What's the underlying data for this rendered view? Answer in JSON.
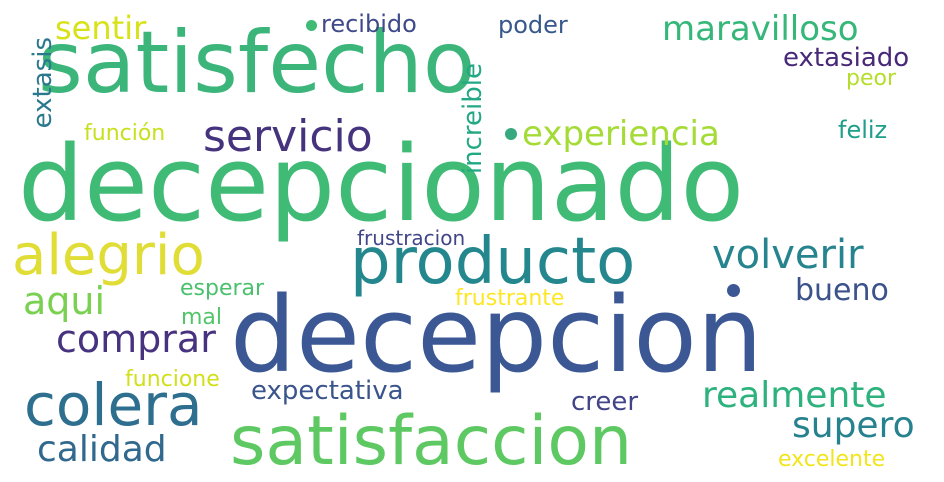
{
  "words": [
    {
      "text": "satisfecho",
      "color": "#3bb57a"
    },
    {
      "text": "decepcionado",
      "color": "#3fbb75"
    },
    {
      "text": "decepcion",
      "color": "#3b5895"
    },
    {
      "text": "satisfaccion",
      "color": "#5ec962"
    },
    {
      "text": "producto",
      "color": "#23878d"
    },
    {
      "text": "alegrio",
      "color": "#e1dd37"
    },
    {
      "text": "colera",
      "color": "#2e6e8e"
    },
    {
      "text": "servicio",
      "color": "#46337e"
    },
    {
      "text": "experiencia",
      "color": "#a5db36"
    },
    {
      "text": "maravilloso",
      "color": "#35b779"
    },
    {
      "text": "sentir",
      "color": "#d8e219"
    },
    {
      "text": "recibido",
      "color": "#3e4a89"
    },
    {
      "text": "poder",
      "color": "#38588c"
    },
    {
      "text": "extasiado",
      "color": "#482878"
    },
    {
      "text": "peor",
      "color": "#b5de2b"
    },
    {
      "text": "feliz",
      "color": "#1f9e89"
    },
    {
      "text": "extasis",
      "color": "#2a788e"
    },
    {
      "text": "función",
      "color": "#c8e020"
    },
    {
      "text": "increible",
      "color": "#22a884"
    },
    {
      "text": "volverir",
      "color": "#25848e"
    },
    {
      "text": "bueno",
      "color": "#3b528b"
    },
    {
      "text": "frustracion",
      "color": "#404688"
    },
    {
      "text": "aqui",
      "color": "#7ad151"
    },
    {
      "text": "esperar",
      "color": "#4ac16d"
    },
    {
      "text": "frustrante",
      "color": "#fde725"
    },
    {
      "text": "comprar",
      "color": "#46327e"
    },
    {
      "text": "mal",
      "color": "#52c569"
    },
    {
      "text": "funcione",
      "color": "#d0e11c"
    },
    {
      "text": "realmente",
      "color": "#2db27d"
    },
    {
      "text": "expectativa",
      "color": "#3a548c"
    },
    {
      "text": "creer",
      "color": "#414487"
    },
    {
      "text": "supero",
      "color": "#26828e"
    },
    {
      "text": "calidad",
      "color": "#31688e"
    },
    {
      "text": "excelente",
      "color": "#f1e51d"
    }
  ],
  "dots": [
    {
      "color": "#3fbb75"
    },
    {
      "color": "#38a97e"
    },
    {
      "color": "#3b5895"
    }
  ]
}
